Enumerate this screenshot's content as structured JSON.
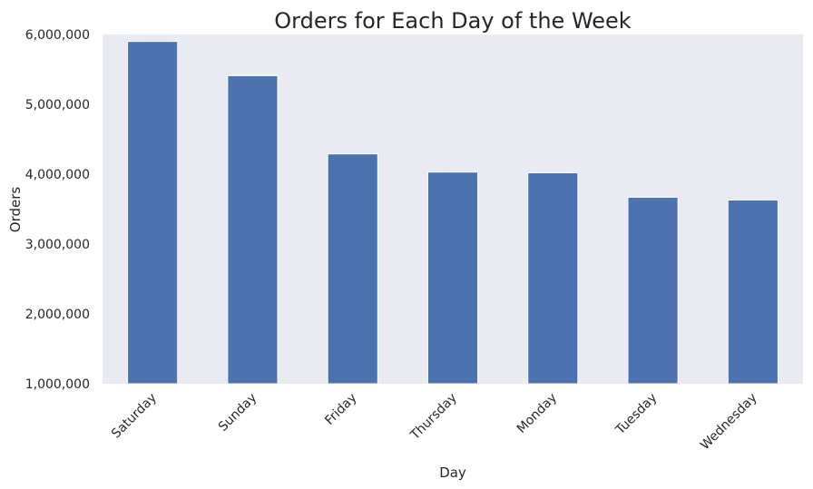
{
  "chart_data": {
    "type": "bar",
    "title": "Orders for Each Day of the Week",
    "xlabel": "Day",
    "ylabel": "Orders",
    "categories": [
      "Saturday",
      "Sunday",
      "Friday",
      "Thursday",
      "Monday",
      "Tuesday",
      "Wednesday"
    ],
    "values": [
      5900000,
      5410000,
      4290000,
      4030000,
      4020000,
      3670000,
      3630000
    ],
    "ylim": [
      1000000,
      6000000
    ],
    "yticks": [
      1000000,
      2000000,
      3000000,
      4000000,
      5000000,
      6000000
    ],
    "ytick_labels": [
      "1,000,000",
      "2,000,000",
      "3,000,000",
      "4,000,000",
      "5,000,000",
      "6,000,000"
    ],
    "grid": false,
    "colors": {
      "bar": "#4c72b0",
      "plot_bg": "#eaeaf2",
      "bar_edge": "#ffffff"
    }
  }
}
